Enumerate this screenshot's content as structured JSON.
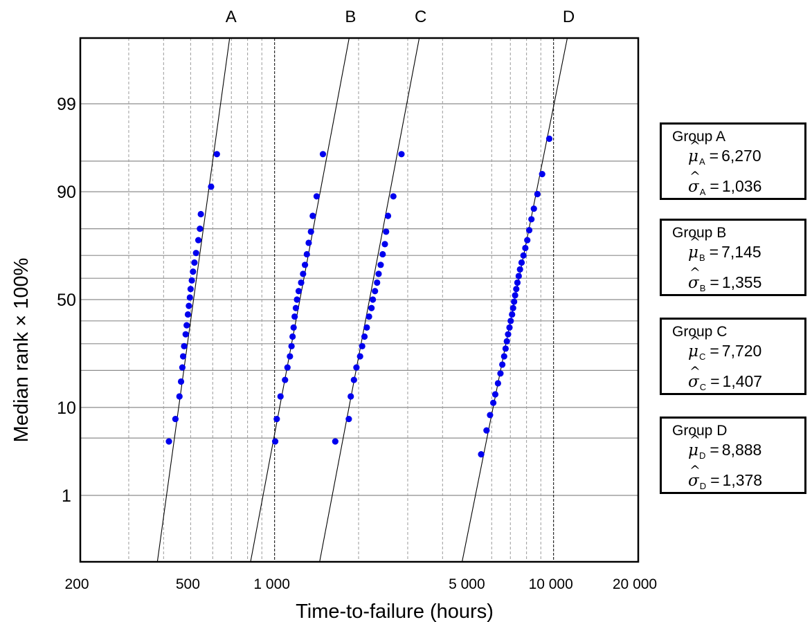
{
  "chart_data": {
    "type": "scatter",
    "xscale": "log",
    "yscale": "normal-probability",
    "xlabel": "Time-to-failure (hours)",
    "ylabel": "Median rank × 100%",
    "xlim": [
      200,
      20000
    ],
    "ylim": [
      0.1,
      99.95
    ],
    "x_tick_labels": [
      {
        "value": 200,
        "label": "200"
      },
      {
        "value": 500,
        "label": "500"
      },
      {
        "value": 1000,
        "label": "1 000"
      },
      {
        "value": 5000,
        "label": "5 000"
      },
      {
        "value": 10000,
        "label": "10 000"
      },
      {
        "value": 20000,
        "label": "20 000"
      }
    ],
    "y_tick_labels": [
      {
        "value": 1,
        "label": "1"
      },
      {
        "value": 10,
        "label": "10"
      },
      {
        "value": 50,
        "label": "50"
      },
      {
        "value": 90,
        "label": "90"
      },
      {
        "value": 99,
        "label": "99"
      }
    ],
    "x_gridlines": [
      300,
      400,
      500,
      600,
      700,
      800,
      900,
      2000,
      3000,
      4000,
      6000,
      7000,
      8000,
      9000
    ],
    "x_major_gridlines": [
      1000,
      10000
    ],
    "y_gridlines": [
      1,
      5,
      10,
      20,
      30,
      40,
      50,
      60,
      70,
      80,
      90,
      95,
      99
    ],
    "grid": true,
    "marker_color": "#0000ee",
    "series": [
      {
        "name": "A",
        "line": {
          "x": [
            380,
            690
          ]
        },
        "points": [
          {
            "x": 418,
            "y": 4.6
          },
          {
            "x": 441,
            "y": 7.8
          },
          {
            "x": 456,
            "y": 12.5
          },
          {
            "x": 462,
            "y": 16.5
          },
          {
            "x": 467,
            "y": 21
          },
          {
            "x": 470,
            "y": 25
          },
          {
            "x": 474,
            "y": 29
          },
          {
            "x": 480,
            "y": 34
          },
          {
            "x": 484,
            "y": 38
          },
          {
            "x": 489,
            "y": 43
          },
          {
            "x": 493,
            "y": 47
          },
          {
            "x": 497,
            "y": 51
          },
          {
            "x": 500,
            "y": 55
          },
          {
            "x": 505,
            "y": 59
          },
          {
            "x": 510,
            "y": 63
          },
          {
            "x": 516,
            "y": 67
          },
          {
            "x": 523,
            "y": 71
          },
          {
            "x": 533,
            "y": 76
          },
          {
            "x": 540,
            "y": 80
          },
          {
            "x": 544,
            "y": 84.5
          },
          {
            "x": 592,
            "y": 91
          },
          {
            "x": 621,
            "y": 95.8
          }
        ]
      },
      {
        "name": "B",
        "line": {
          "x": [
            820,
            1850
          ]
        },
        "points": [
          {
            "x": 1005,
            "y": 4.6
          },
          {
            "x": 1018,
            "y": 7.8
          },
          {
            "x": 1050,
            "y": 12.5
          },
          {
            "x": 1090,
            "y": 17
          },
          {
            "x": 1112,
            "y": 21
          },
          {
            "x": 1135,
            "y": 25
          },
          {
            "x": 1150,
            "y": 29
          },
          {
            "x": 1160,
            "y": 33
          },
          {
            "x": 1170,
            "y": 37
          },
          {
            "x": 1180,
            "y": 42
          },
          {
            "x": 1192,
            "y": 46
          },
          {
            "x": 1203,
            "y": 50
          },
          {
            "x": 1220,
            "y": 54
          },
          {
            "x": 1245,
            "y": 58
          },
          {
            "x": 1265,
            "y": 62
          },
          {
            "x": 1285,
            "y": 66
          },
          {
            "x": 1305,
            "y": 70.5
          },
          {
            "x": 1325,
            "y": 75
          },
          {
            "x": 1350,
            "y": 79
          },
          {
            "x": 1370,
            "y": 84
          },
          {
            "x": 1415,
            "y": 89
          },
          {
            "x": 1490,
            "y": 95.8
          }
        ]
      },
      {
        "name": "C",
        "line": {
          "x": [
            1450,
            3300
          ]
        },
        "points": [
          {
            "x": 1650,
            "y": 4.6
          },
          {
            "x": 1845,
            "y": 7.8
          },
          {
            "x": 1875,
            "y": 12.5
          },
          {
            "x": 1925,
            "y": 17
          },
          {
            "x": 1965,
            "y": 21
          },
          {
            "x": 2025,
            "y": 25
          },
          {
            "x": 2060,
            "y": 29
          },
          {
            "x": 2100,
            "y": 33
          },
          {
            "x": 2140,
            "y": 37
          },
          {
            "x": 2180,
            "y": 42
          },
          {
            "x": 2225,
            "y": 46
          },
          {
            "x": 2250,
            "y": 50
          },
          {
            "x": 2290,
            "y": 54
          },
          {
            "x": 2330,
            "y": 58
          },
          {
            "x": 2360,
            "y": 62
          },
          {
            "x": 2400,
            "y": 66
          },
          {
            "x": 2440,
            "y": 70.5
          },
          {
            "x": 2485,
            "y": 74.5
          },
          {
            "x": 2510,
            "y": 79
          },
          {
            "x": 2550,
            "y": 84
          },
          {
            "x": 2665,
            "y": 89
          },
          {
            "x": 2850,
            "y": 95.8
          }
        ]
      },
      {
        "name": "D",
        "line": {
          "x": [
            4700,
            11200
          ]
        },
        "points": [
          {
            "x": 5500,
            "y": 3.3
          },
          {
            "x": 5750,
            "y": 6
          },
          {
            "x": 5920,
            "y": 8.5
          },
          {
            "x": 6080,
            "y": 11
          },
          {
            "x": 6180,
            "y": 13
          },
          {
            "x": 6320,
            "y": 16
          },
          {
            "x": 6450,
            "y": 19
          },
          {
            "x": 6550,
            "y": 22
          },
          {
            "x": 6650,
            "y": 25
          },
          {
            "x": 6730,
            "y": 28
          },
          {
            "x": 6800,
            "y": 31
          },
          {
            "x": 6870,
            "y": 34
          },
          {
            "x": 6950,
            "y": 37
          },
          {
            "x": 7020,
            "y": 40
          },
          {
            "x": 7100,
            "y": 43
          },
          {
            "x": 7160,
            "y": 46
          },
          {
            "x": 7220,
            "y": 49
          },
          {
            "x": 7280,
            "y": 52
          },
          {
            "x": 7350,
            "y": 55
          },
          {
            "x": 7420,
            "y": 58
          },
          {
            "x": 7500,
            "y": 61
          },
          {
            "x": 7580,
            "y": 64
          },
          {
            "x": 7680,
            "y": 67
          },
          {
            "x": 7800,
            "y": 70
          },
          {
            "x": 7920,
            "y": 73
          },
          {
            "x": 8050,
            "y": 76
          },
          {
            "x": 8180,
            "y": 79.5
          },
          {
            "x": 8330,
            "y": 83
          },
          {
            "x": 8500,
            "y": 86
          },
          {
            "x": 8750,
            "y": 89.5
          },
          {
            "x": 9100,
            "y": 93.2
          },
          {
            "x": 9650,
            "y": 97.2
          }
        ]
      }
    ]
  },
  "legend": [
    {
      "title": "Group A",
      "mu_symbol": "μ",
      "sigma_symbol": "σ",
      "sub": "A",
      "mu_value": "6,270",
      "sigma_value": "1,036"
    },
    {
      "title": "Group B",
      "mu_symbol": "μ",
      "sigma_symbol": "σ",
      "sub": "B",
      "mu_value": "7,145",
      "sigma_value": "1,355"
    },
    {
      "title": "Group C",
      "mu_symbol": "μ",
      "sigma_symbol": "σ",
      "sub": "C",
      "mu_value": "7,720",
      "sigma_value": "1,407"
    },
    {
      "title": "Group D",
      "mu_symbol": "μ",
      "sigma_symbol": "σ",
      "sub": "D",
      "mu_value": "8,888",
      "sigma_value": "1,378"
    }
  ]
}
